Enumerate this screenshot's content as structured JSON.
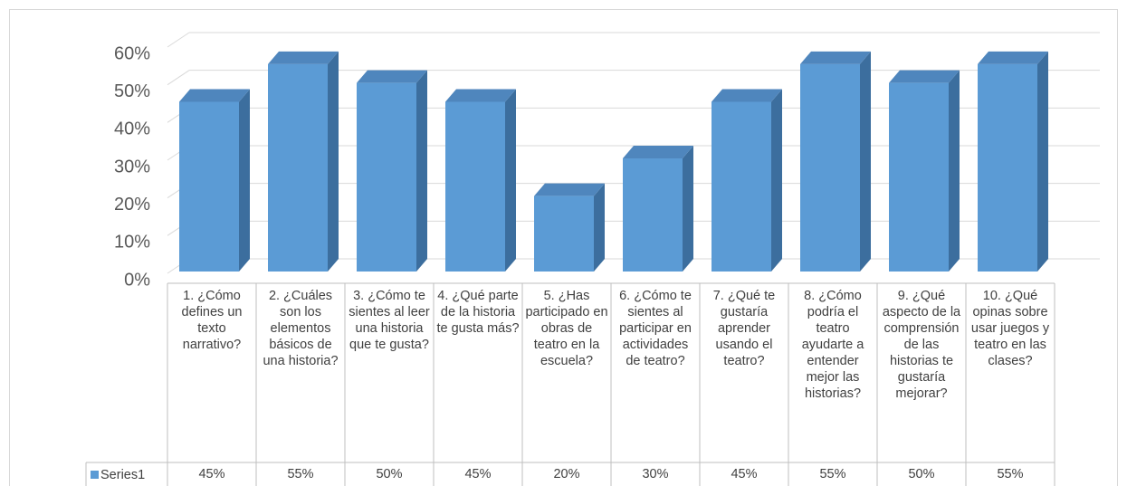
{
  "chart_data": {
    "type": "bar",
    "categories": [
      "1. ¿Cómo defines un texto narrativo?",
      "2. ¿Cuáles son los elementos básicos de una historia?",
      "3. ¿Cómo te sientes al leer una historia que te gusta?",
      "4. ¿Qué parte de la historia te gusta más?",
      "5. ¿Has participado en obras de teatro en la escuela?",
      "6. ¿Cómo te sientes al participar en actividades de teatro?",
      "7. ¿Qué te gustaría aprender usando el teatro?",
      "8. ¿Cómo podría el teatro ayudarte a entender mejor las historias?",
      "9. ¿Qué aspecto de la comprensión de las historias te gustaría mejorar?",
      "10. ¿Qué opinas sobre usar juegos y teatro en las clases?"
    ],
    "series": [
      {
        "name": "Series1",
        "color": "#5b9bd5",
        "values": [
          45,
          55,
          50,
          45,
          20,
          30,
          45,
          55,
          50,
          55
        ],
        "value_labels": [
          "45%",
          "55%",
          "50%",
          "45%",
          "20%",
          "30%",
          "45%",
          "55%",
          "50%",
          "55%"
        ]
      }
    ],
    "ylim": [
      0,
      60
    ],
    "yticks": [
      {
        "value": 0,
        "label": "0%"
      },
      {
        "value": 10,
        "label": "10%"
      },
      {
        "value": 20,
        "label": "20%"
      },
      {
        "value": 30,
        "label": "30%"
      },
      {
        "value": 40,
        "label": "40%"
      },
      {
        "value": 50,
        "label": "50%"
      },
      {
        "value": 60,
        "label": "60%"
      }
    ],
    "grid": true
  }
}
